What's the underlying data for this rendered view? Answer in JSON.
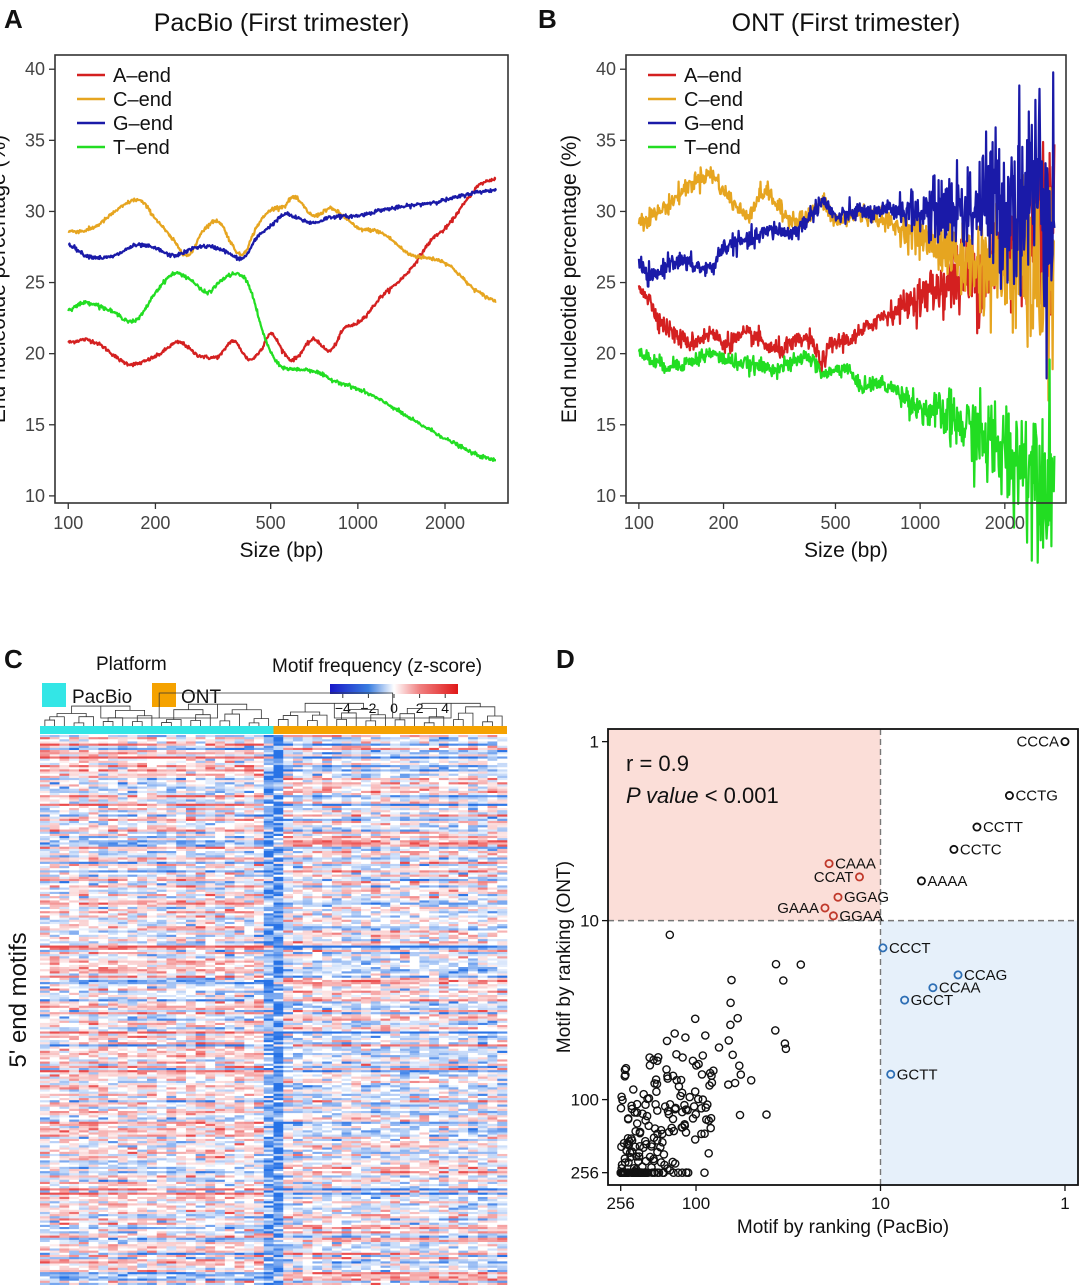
{
  "panel_labels": [
    "A",
    "B",
    "C",
    "D"
  ],
  "colors": {
    "a_end": "#d42020",
    "c_end": "#e6a520",
    "g_end": "#1a1aa8",
    "t_end": "#22dd22",
    "pacbio": "#33e6e6",
    "ont": "#f5a200",
    "hm_low": "#1f3fe0",
    "hm_mid": "#ffffff",
    "hm_high": "#e02020",
    "quad_tl": "#fbded8",
    "quad_br": "#e6f0fa",
    "label_red": "#c0392b",
    "label_blue": "#2e6fb5"
  },
  "chart_data": [
    {
      "id": "A",
      "type": "line",
      "title": "PacBio (First trimester)",
      "xlabel": "Size (bp)",
      "ylabel": "End nucleotide percentage (%)",
      "xscale": "log",
      "xlim": [
        90,
        3300
      ],
      "ylim": [
        9.5,
        41
      ],
      "xticks": [
        100,
        200,
        500,
        1000,
        2000
      ],
      "xtick_labels": [
        "100",
        "200",
        "500",
        "1000",
        "2000"
      ],
      "yticks": [
        10,
        15,
        20,
        25,
        30,
        35,
        40
      ],
      "ytick_labels": [
        "10",
        "15",
        "20",
        "25",
        "30",
        "35",
        "40"
      ],
      "legend": [
        "A–end",
        "C–end",
        "G–end",
        "T–end"
      ],
      "series": [
        {
          "name": "A–end",
          "color_key": "a_end",
          "noise": 0.12,
          "x": [
            100,
            120,
            160,
            200,
            240,
            280,
            330,
            370,
            420,
            460,
            500,
            560,
            600,
            700,
            800,
            900,
            1000,
            1200,
            1500,
            1800,
            2000,
            2300,
            2600,
            3000
          ],
          "y": [
            20.8,
            20.9,
            19.3,
            19.8,
            20.8,
            19.9,
            19.8,
            20.9,
            19.6,
            20.2,
            21.4,
            20.0,
            19.6,
            21.0,
            20.2,
            21.8,
            22.2,
            24.0,
            25.8,
            28.0,
            28.8,
            30.4,
            31.8,
            32.3
          ]
        },
        {
          "name": "C–end",
          "color_key": "c_end",
          "noise": 0.12,
          "x": [
            100,
            120,
            150,
            175,
            200,
            230,
            260,
            290,
            330,
            370,
            400,
            450,
            500,
            560,
            600,
            700,
            800,
            900,
            1000,
            1200,
            1500,
            2000,
            2500,
            3000
          ],
          "y": [
            28.6,
            28.8,
            30.2,
            30.8,
            29.5,
            28.0,
            26.9,
            28.6,
            29.3,
            27.6,
            27.0,
            29.0,
            30.1,
            30.4,
            31.0,
            29.7,
            30.2,
            29.6,
            28.8,
            28.5,
            27.0,
            26.4,
            24.6,
            23.7
          ]
        },
        {
          "name": "G–end",
          "color_key": "g_end",
          "noise": 0.12,
          "x": [
            100,
            115,
            140,
            170,
            200,
            230,
            280,
            330,
            400,
            450,
            500,
            560,
            600,
            700,
            800,
            1000,
            1200,
            1500,
            2000,
            2500,
            3000
          ],
          "y": [
            27.7,
            26.9,
            26.8,
            27.6,
            27.4,
            26.9,
            27.5,
            27.4,
            26.7,
            28.2,
            29.0,
            29.8,
            29.6,
            29.2,
            29.6,
            29.7,
            30.1,
            30.4,
            30.8,
            31.3,
            31.5
          ]
        },
        {
          "name": "T–end",
          "color_key": "t_end",
          "noise": 0.12,
          "x": [
            100,
            115,
            140,
            170,
            200,
            230,
            260,
            300,
            340,
            380,
            420,
            470,
            520,
            560,
            600,
            700,
            800,
            1000,
            1200,
            1500,
            1800,
            2000,
            2500,
            3000
          ],
          "y": [
            23.1,
            23.6,
            23.0,
            22.3,
            24.3,
            25.6,
            25.3,
            24.3,
            25.2,
            25.6,
            24.8,
            21.5,
            19.5,
            19.0,
            18.9,
            18.8,
            18.2,
            17.5,
            16.7,
            15.5,
            14.6,
            14.0,
            13.0,
            12.5
          ]
        }
      ]
    },
    {
      "id": "B",
      "type": "line",
      "title": "ONT (First trimester)",
      "xlabel": "Size (bp)",
      "ylabel": "End nucleotide percentage (%)",
      "xscale": "log",
      "xlim": [
        90,
        3300
      ],
      "ylim": [
        9.5,
        41
      ],
      "xticks": [
        100,
        200,
        500,
        1000,
        2000
      ],
      "xtick_labels": [
        "100",
        "200",
        "500",
        "1000",
        "2000"
      ],
      "yticks": [
        10,
        15,
        20,
        25,
        30,
        35,
        40
      ],
      "ytick_labels": [
        "10",
        "15",
        "20",
        "25",
        "30",
        "35",
        "40"
      ],
      "legend": [
        "A–end",
        "C–end",
        "G–end",
        "T–end"
      ],
      "series": [
        {
          "name": "A–end",
          "color_key": "a_end",
          "noise": 0.6,
          "noise_grow": 6,
          "x": [
            100,
            120,
            150,
            180,
            200,
            250,
            300,
            350,
            400,
            450,
            480,
            530,
            600,
            700,
            800,
            1000,
            1200,
            1500,
            2000,
            2500,
            3000
          ],
          "y": [
            24.8,
            22.2,
            20.8,
            21.4,
            20.8,
            21.3,
            20.3,
            20.6,
            21.0,
            19.5,
            20.6,
            20.9,
            21.3,
            22.4,
            23.0,
            24.0,
            24.8,
            25.5,
            27.2,
            28.6,
            30.0
          ]
        },
        {
          "name": "C–end",
          "color_key": "c_end",
          "noise": 0.6,
          "noise_grow": 6,
          "x": [
            100,
            120,
            150,
            180,
            200,
            240,
            280,
            330,
            400,
            450,
            500,
            600,
            700,
            800,
            1000,
            1200,
            1500,
            2000,
            2500,
            3000
          ],
          "y": [
            29.4,
            30.1,
            31.8,
            32.6,
            31.4,
            29.8,
            31.4,
            29.7,
            29.6,
            30.6,
            29.3,
            29.8,
            29.6,
            29.0,
            28.2,
            27.4,
            26.4,
            26.2,
            25.4,
            24.2
          ]
        },
        {
          "name": "G–end",
          "color_key": "g_end",
          "noise": 0.6,
          "noise_grow": 8,
          "x": [
            100,
            110,
            130,
            150,
            180,
            200,
            250,
            300,
            350,
            400,
            450,
            500,
            600,
            700,
            800,
            1000,
            1200,
            1500,
            2000,
            2500,
            3000
          ],
          "y": [
            26.3,
            25.3,
            26.5,
            26.3,
            26.0,
            27.5,
            28.0,
            28.7,
            28.5,
            29.5,
            30.7,
            29.6,
            30.0,
            29.8,
            30.2,
            29.9,
            30.1,
            30.3,
            30.8,
            31.5,
            32.0
          ]
        },
        {
          "name": "T–end",
          "color_key": "t_end",
          "noise": 0.5,
          "noise_grow": 5,
          "x": [
            100,
            120,
            150,
            180,
            200,
            250,
            300,
            350,
            400,
            450,
            500,
            550,
            600,
            700,
            800,
            1000,
            1200,
            1500,
            2000,
            2500,
            3000
          ],
          "y": [
            20.0,
            19.2,
            19.4,
            20.0,
            19.6,
            19.2,
            19.0,
            19.3,
            19.8,
            18.6,
            18.8,
            19.0,
            17.8,
            17.9,
            17.5,
            16.2,
            15.6,
            14.6,
            13.0,
            12.2,
            11.6
          ]
        }
      ]
    },
    {
      "id": "C",
      "type": "heatmap",
      "title": "",
      "ylabel": "5' end motifs",
      "platform_legend_title": "Platform",
      "platform_legend": [
        "PacBio",
        "ONT"
      ],
      "colorbar_title": "Motif frequency (z-score)",
      "colorbar_range": [
        -5,
        5
      ],
      "colorbar_ticks": [
        -4,
        -2,
        0,
        2,
        4
      ],
      "colorbar_tick_labels": [
        "−4",
        "−2",
        "0",
        "2",
        "4"
      ],
      "n_rows": 256,
      "n_cols": 48,
      "groups": [
        {
          "name": "PacBio",
          "n_cols": 24
        },
        {
          "name": "ONT",
          "n_cols": 24
        }
      ]
    },
    {
      "id": "D",
      "type": "scatter",
      "xlabel": "Motif by ranking (PacBio)",
      "ylabel": "Motif by ranking (ONT)",
      "xscale": "log",
      "yscale": "log",
      "xreverse": true,
      "yreverse": true,
      "xlim": [
        300,
        0.85
      ],
      "ylim": [
        0.85,
        300
      ],
      "xticks": [
        256,
        100,
        10,
        1
      ],
      "xtick_labels": [
        "256",
        "100",
        "10",
        "1"
      ],
      "yticks": [
        1,
        10,
        100,
        256
      ],
      "ytick_labels": [
        "1",
        "10",
        "100",
        "256"
      ],
      "threshold": 10,
      "stats": {
        "r_text": "r = 0.9",
        "p_label": "P value",
        "p_rest": " < 0.001"
      },
      "labeled_points": [
        {
          "label": "CCCA",
          "x": 1,
          "y": 1,
          "color_key": "black",
          "side": "left"
        },
        {
          "label": "CCTG",
          "x": 2,
          "y": 2,
          "color_key": "black",
          "side": "right"
        },
        {
          "label": "CCTT",
          "x": 3,
          "y": 3,
          "color_key": "black",
          "side": "right"
        },
        {
          "label": "CCTC",
          "x": 4,
          "y": 4,
          "color_key": "black",
          "side": "right"
        },
        {
          "label": "AAAA",
          "x": 6,
          "y": 6,
          "color_key": "black",
          "side": "right"
        },
        {
          "label": "CAAA",
          "x": 19,
          "y": 4.8,
          "color_key": "label_red",
          "side": "right"
        },
        {
          "label": "CCAT",
          "x": 13,
          "y": 5.7,
          "color_key": "label_red",
          "side": "left"
        },
        {
          "label": "GGAG",
          "x": 17,
          "y": 7.4,
          "color_key": "label_red",
          "side": "right"
        },
        {
          "label": "GAAA",
          "x": 20,
          "y": 8.5,
          "color_key": "label_red",
          "side": "left"
        },
        {
          "label": "GGAA",
          "x": 18,
          "y": 9.4,
          "color_key": "label_red",
          "side": "right"
        },
        {
          "label": "CCCT",
          "x": 9.7,
          "y": 14.2,
          "color_key": "label_blue",
          "side": "right"
        },
        {
          "label": "CCAG",
          "x": 3.8,
          "y": 20.1,
          "color_key": "label_blue",
          "side": "right"
        },
        {
          "label": "CCAA",
          "x": 5.2,
          "y": 23.7,
          "color_key": "label_blue",
          "side": "right"
        },
        {
          "label": "GCCT",
          "x": 7.4,
          "y": 27.8,
          "color_key": "label_blue",
          "side": "right"
        },
        {
          "label": "GCTT",
          "x": 8.8,
          "y": 72.2,
          "color_key": "label_blue",
          "side": "right"
        }
      ],
      "n_background_points": 241
    }
  ]
}
